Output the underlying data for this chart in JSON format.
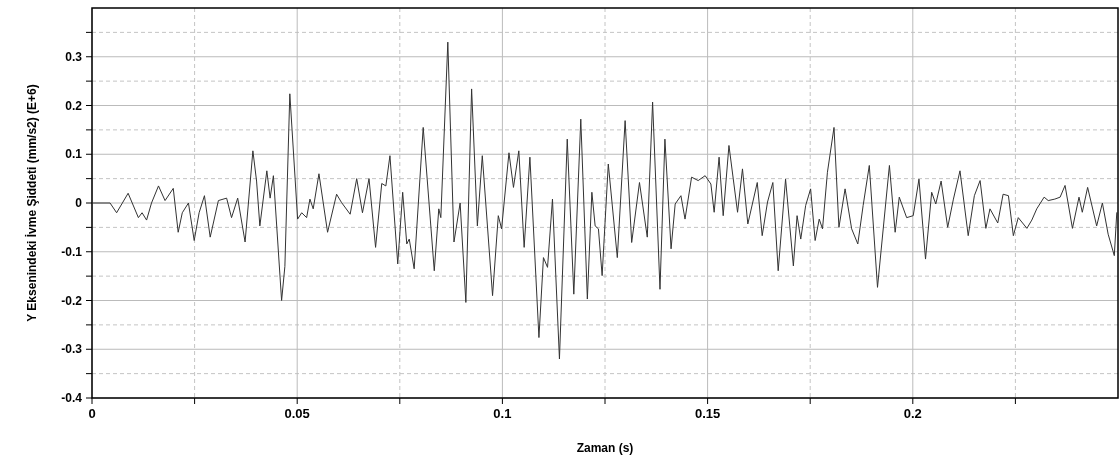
{
  "chart_data": {
    "type": "line",
    "xlabel": "Zaman (s)",
    "ylabel": "Y Eksenindeki İvme Şiddeti (mm/s2) (E+6)",
    "xlim": [
      0,
      0.25
    ],
    "ylim": [
      -0.4,
      0.4
    ],
    "xticks": [
      0,
      0.05,
      0.1,
      0.15,
      0.2,
      {
        "value": 0.025,
        "label": null
      },
      {
        "value": 0.075,
        "label": null
      },
      {
        "value": 0.125,
        "label": null
      },
      {
        "value": 0.175,
        "label": null
      },
      {
        "value": 0.225,
        "label": null
      }
    ],
    "yticks": [
      -0.4,
      -0.3,
      -0.2,
      -0.1,
      0,
      0.1,
      0.2,
      0.3,
      {
        "value": -0.35,
        "label": null
      },
      {
        "value": -0.25,
        "label": null
      },
      {
        "value": -0.15,
        "label": null
      },
      {
        "value": -0.05,
        "label": null
      },
      {
        "value": 0.05,
        "label": null
      },
      {
        "value": 0.15,
        "label": null
      },
      {
        "value": 0.25,
        "label": null
      },
      {
        "value": 0.35,
        "label": null
      }
    ],
    "grid": true,
    "line_style": "solid",
    "marker": "none",
    "series": [
      {
        "color": "#333333",
        "x": [
          0.0003,
          0.0044,
          0.006,
          0.0088,
          0.0113,
          0.0122,
          0.0133,
          0.0145,
          0.0162,
          0.0178,
          0.0198,
          0.021,
          0.022,
          0.0235,
          0.0249,
          0.0261,
          0.0274,
          0.0288,
          0.0308,
          0.0328,
          0.034,
          0.0355,
          0.0373,
          0.0392,
          0.0401,
          0.0409,
          0.0426,
          0.0434,
          0.0442,
          0.0462,
          0.047,
          0.0482,
          0.0501,
          0.0511,
          0.0523,
          0.0531,
          0.0539,
          0.0553,
          0.0574,
          0.0596,
          0.0608,
          0.0629,
          0.0645,
          0.0659,
          0.0675,
          0.0691,
          0.0706,
          0.0716,
          0.0726,
          0.0745,
          0.0757,
          0.0767,
          0.0773,
          0.0785,
          0.0807,
          0.0834,
          0.0845,
          0.085,
          0.0867,
          0.0882,
          0.0897,
          0.0911,
          0.0925,
          0.0939,
          0.0951,
          0.0976,
          0.099,
          0.0998,
          0.1016,
          0.1027,
          0.104,
          0.1053,
          0.1067,
          0.1089,
          0.11,
          0.111,
          0.1122,
          0.1139,
          0.1158,
          0.1174,
          0.1191,
          0.1207,
          0.1218,
          0.1226,
          0.1234,
          0.1243,
          0.1258,
          0.128,
          0.1299,
          0.1315,
          0.1334,
          0.1353,
          0.1366,
          0.1384,
          0.1396,
          0.1411,
          0.1421,
          0.1435,
          0.1445,
          0.1461,
          0.1477,
          0.1494,
          0.1508,
          0.1516,
          0.1528,
          0.1538,
          0.1552,
          0.1573,
          0.1585,
          0.1598,
          0.1621,
          0.1633,
          0.1646,
          0.1659,
          0.1672,
          0.169,
          0.1709,
          0.1718,
          0.1727,
          0.1739,
          0.1751,
          0.1762,
          0.1772,
          0.178,
          0.1792,
          0.1808,
          0.182,
          0.1835,
          0.1851,
          0.1866,
          0.1879,
          0.1894,
          0.1914,
          0.1943,
          0.1957,
          0.1967,
          0.1985,
          0.2001,
          0.2015,
          0.2031,
          0.2046,
          0.2056,
          0.2069,
          0.2085,
          0.2099,
          0.2115,
          0.2135,
          0.215,
          0.2164,
          0.2178,
          0.2188,
          0.2207,
          0.222,
          0.2233,
          0.2245,
          0.2257,
          0.2278,
          0.229,
          0.2302,
          0.232,
          0.233,
          0.2346,
          0.2359,
          0.2371,
          0.2389,
          0.2405,
          0.2413,
          0.2426,
          0.2448,
          0.2462,
          0.2476,
          0.2491,
          0.2497
        ],
        "values": [
          0,
          0,
          -0.02,
          0.02,
          -0.03,
          -0.02,
          -0.035,
          0,
          0.035,
          0.005,
          0.03,
          -0.06,
          -0.02,
          0,
          -0.077,
          -0.02,
          0.015,
          -0.07,
          0.005,
          0.01,
          -0.03,
          0.01,
          -0.08,
          0.107,
          0.045,
          -0.047,
          0.066,
          0.01,
          0.056,
          -0.2,
          -0.13,
          0.224,
          -0.033,
          -0.02,
          -0.03,
          0.008,
          -0.012,
          0.06,
          -0.06,
          0.018,
          0.001,
          -0.023,
          0.05,
          -0.02,
          0.05,
          -0.091,
          0.04,
          0.035,
          0.097,
          -0.125,
          0.022,
          -0.084,
          -0.074,
          -0.135,
          0.155,
          -0.139,
          -0.012,
          -0.03,
          0.33,
          -0.08,
          0,
          -0.204,
          0.234,
          -0.047,
          0.097,
          -0.19,
          -0.026,
          -0.053,
          0.103,
          0.032,
          0.107,
          -0.091,
          0.094,
          -0.276,
          -0.112,
          -0.132,
          0.008,
          -0.32,
          0.131,
          -0.187,
          0.172,
          -0.197,
          0.022,
          -0.047,
          -0.053,
          -0.149,
          0.08,
          -0.112,
          0.169,
          -0.081,
          0.042,
          -0.07,
          0.207,
          -0.177,
          0.131,
          -0.094,
          -0.002,
          0.015,
          -0.033,
          0.053,
          0.046,
          0.056,
          0.039,
          -0.019,
          0.094,
          -0.026,
          0.118,
          -0.019,
          0.07,
          -0.043,
          0.042,
          -0.067,
          0.002,
          0.042,
          -0.139,
          0.049,
          -0.129,
          -0.026,
          -0.074,
          -0.005,
          0.029,
          -0.077,
          -0.033,
          -0.053,
          0.063,
          0.155,
          -0.05,
          0.029,
          -0.053,
          -0.084,
          -0.005,
          0.077,
          -0.173,
          0.077,
          -0.06,
          0.012,
          -0.03,
          -0.026,
          0.049,
          -0.115,
          0.022,
          -0.002,
          0.045,
          -0.05,
          0.008,
          0.066,
          -0.067,
          0.015,
          0.046,
          -0.052,
          -0.012,
          -0.041,
          0.018,
          0.015,
          -0.067,
          -0.03,
          -0.052,
          -0.035,
          -0.012,
          0.012,
          0.005,
          0.008,
          0.012,
          0.036,
          -0.052,
          0.012,
          -0.019,
          0.032,
          -0.047,
          0,
          -0.064,
          -0.108,
          -0.02
        ]
      }
    ]
  }
}
